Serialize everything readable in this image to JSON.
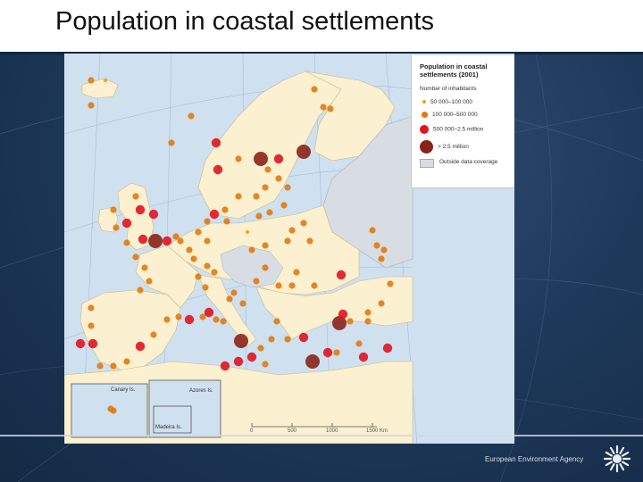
{
  "slide": {
    "title": "Population in coastal settlements",
    "footer": "European Environment Agency"
  },
  "map": {
    "legend": {
      "title": "Population in coastal settlements (2001)",
      "subtitle": "Number of inhabitants",
      "classes": [
        {
          "label": "50 000–100 000",
          "color": "#e8a21a"
        },
        {
          "label": "100 000–500 000",
          "color": "#e07a10"
        },
        {
          "label": "500 000–2.5 million",
          "color": "#e0141e"
        },
        {
          "label": "> 2.5 million",
          "color": "#8a2418"
        }
      ],
      "nodata": "Outside data coverage"
    },
    "insets": [
      "Canary Is.",
      "Azores Is.",
      "Madeira Is."
    ],
    "scale_labels": [
      "0",
      "500",
      "1000",
      "1500 Km"
    ],
    "colors": {
      "sea": "#cfe0ef",
      "land": "#fbf0cf",
      "nodata": "#d8dde3"
    }
  }
}
